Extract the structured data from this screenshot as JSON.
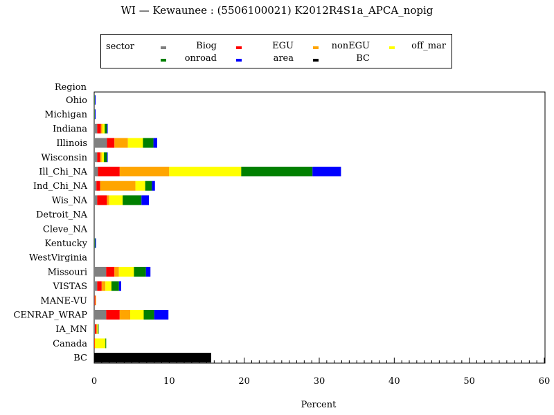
{
  "chart_data": {
    "type": "bar",
    "orientation": "horizontal",
    "stacked": true,
    "title": "WI — Kewaunee : (5506100021) K2012R4S1a_APCA_nopig",
    "xlabel": "Percent",
    "ylabel": "Region",
    "xlim": [
      0,
      60
    ],
    "xticks": [
      0,
      10,
      20,
      30,
      40,
      50,
      60
    ],
    "grid": false,
    "legend_title": "sector",
    "legend_placement": "top",
    "categories": [
      "Ohio",
      "Michigan",
      "Indiana",
      "Illinois",
      "Wisconsin",
      "Ill_Chi_NA",
      "Ind_Chi_NA",
      "Wis_NA",
      "Detroit_NA",
      "Cleve_NA",
      "Kentucky",
      "WestVirginia",
      "Missouri",
      "VISTAS",
      "MANE-VU",
      "CENRAP_WRAP",
      "IA_MN",
      "Canada",
      "BC"
    ],
    "series": [
      {
        "name": "Biog",
        "color": "#808080",
        "values": [
          0.05,
          0.05,
          0.4,
          1.7,
          0.4,
          0.5,
          0.3,
          0.4,
          0,
          0,
          0.05,
          0,
          1.6,
          0.4,
          0.05,
          1.6,
          0.1,
          0,
          0
        ]
      },
      {
        "name": "EGU",
        "color": "#ff0000",
        "values": [
          0,
          0,
          0.5,
          1.0,
          0.4,
          2.9,
          0.5,
          1.3,
          0,
          0,
          0,
          0,
          1.1,
          0.6,
          0.1,
          1.8,
          0.2,
          0.05,
          0
        ]
      },
      {
        "name": "nonEGU",
        "color": "#ffa500",
        "values": [
          0,
          0,
          0.2,
          1.8,
          0.2,
          6.6,
          4.7,
          0.3,
          0,
          0,
          0,
          0,
          0.6,
          0.5,
          0.1,
          1.4,
          0.1,
          0.05,
          0
        ]
      },
      {
        "name": "off_mar",
        "color": "#ffff00",
        "values": [
          0,
          0,
          0.3,
          2.0,
          0.3,
          9.6,
          1.3,
          1.8,
          0,
          0,
          0,
          0,
          2.0,
          0.8,
          0,
          1.8,
          0.1,
          1.4,
          0
        ]
      },
      {
        "name": "onroad",
        "color": "#008000",
        "values": [
          0.05,
          0.05,
          0.3,
          1.4,
          0.4,
          9.5,
          0.9,
          2.5,
          0,
          0,
          0.1,
          0,
          1.6,
          1.0,
          0,
          1.4,
          0.05,
          0.1,
          0
        ]
      },
      {
        "name": "area",
        "color": "#0000ff",
        "values": [
          0.05,
          0.05,
          0.1,
          0.5,
          0.1,
          3.8,
          0.4,
          1.0,
          0,
          0,
          0.1,
          0,
          0.6,
          0.3,
          0,
          1.9,
          0,
          0,
          0
        ]
      },
      {
        "name": "BC",
        "color": "#000000",
        "values": [
          0,
          0,
          0,
          0,
          0,
          0,
          0,
          0,
          0,
          0,
          0,
          0,
          0,
          0,
          0,
          0,
          0,
          0,
          15.6
        ]
      }
    ]
  }
}
